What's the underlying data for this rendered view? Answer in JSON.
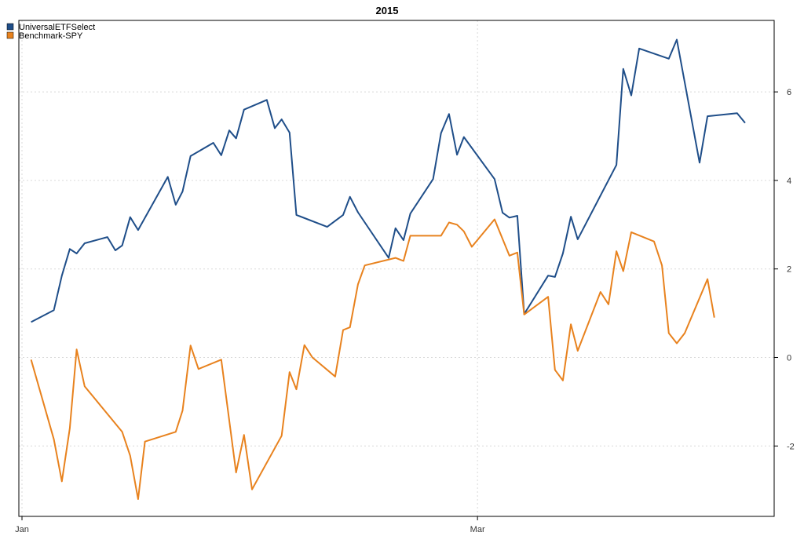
{
  "chart_data": {
    "type": "line",
    "title": "2015",
    "xlabel": "",
    "ylabel": "",
    "x_ticks": [
      {
        "label": "Jan",
        "value": 0
      },
      {
        "label": "Mar",
        "value": 40
      }
    ],
    "xlim": [
      0,
      63.5
    ],
    "ylim": [
      -3.6,
      7.6
    ],
    "y_ticks": [
      -2,
      0,
      2,
      4,
      6
    ],
    "y_axis_side": "right",
    "grid": true,
    "legend_position": "top-left",
    "series": [
      {
        "name": "UniversalETFSelect",
        "color": "#1f4e89",
        "points": [
          [
            0.8,
            0.8
          ],
          [
            2.8,
            1.07
          ],
          [
            3.5,
            1.85
          ],
          [
            4.2,
            2.45
          ],
          [
            4.8,
            2.35
          ],
          [
            5.5,
            2.58
          ],
          [
            7.5,
            2.72
          ],
          [
            8.2,
            2.42
          ],
          [
            8.8,
            2.53
          ],
          [
            9.5,
            3.17
          ],
          [
            10.2,
            2.88
          ],
          [
            12.8,
            4.08
          ],
          [
            13.5,
            3.45
          ],
          [
            14.1,
            3.75
          ],
          [
            14.8,
            4.55
          ],
          [
            16.8,
            4.85
          ],
          [
            17.5,
            4.57
          ],
          [
            18.2,
            5.13
          ],
          [
            18.8,
            4.95
          ],
          [
            19.5,
            5.6
          ],
          [
            21.5,
            5.82
          ],
          [
            22.2,
            5.18
          ],
          [
            22.8,
            5.38
          ],
          [
            23.5,
            5.08
          ],
          [
            24.1,
            3.22
          ],
          [
            26.8,
            2.95
          ],
          [
            28.2,
            3.22
          ],
          [
            28.8,
            3.63
          ],
          [
            29.5,
            3.28
          ],
          [
            32.2,
            2.25
          ],
          [
            32.8,
            2.92
          ],
          [
            33.5,
            2.65
          ],
          [
            34.1,
            3.25
          ],
          [
            36.1,
            4.03
          ],
          [
            36.8,
            5.07
          ],
          [
            37.5,
            5.5
          ],
          [
            38.2,
            4.58
          ],
          [
            38.8,
            4.98
          ],
          [
            41.5,
            4.03
          ],
          [
            42.2,
            3.27
          ],
          [
            42.8,
            3.16
          ],
          [
            43.5,
            3.2
          ],
          [
            44.1,
            0.98
          ],
          [
            46.2,
            1.85
          ],
          [
            46.8,
            1.82
          ],
          [
            47.5,
            2.35
          ],
          [
            48.2,
            3.18
          ],
          [
            48.8,
            2.67
          ],
          [
            52.2,
            4.35
          ],
          [
            52.8,
            6.52
          ],
          [
            53.5,
            5.92
          ],
          [
            54.2,
            6.98
          ],
          [
            56.8,
            6.75
          ],
          [
            57.5,
            7.18
          ],
          [
            59.5,
            4.4
          ],
          [
            60.2,
            5.45
          ],
          [
            62.8,
            5.52
          ],
          [
            63.5,
            5.3
          ]
        ]
      },
      {
        "name": "Benchmark-SPY",
        "color": "#e8821e",
        "points": [
          [
            0.8,
            -0.05
          ],
          [
            2.8,
            -1.85
          ],
          [
            3.5,
            -2.8
          ],
          [
            4.2,
            -1.6
          ],
          [
            4.8,
            0.18
          ],
          [
            5.5,
            -0.65
          ],
          [
            8.8,
            -1.68
          ],
          [
            9.5,
            -2.22
          ],
          [
            10.2,
            -3.2
          ],
          [
            10.8,
            -1.9
          ],
          [
            13.5,
            -1.68
          ],
          [
            14.1,
            -1.2
          ],
          [
            14.8,
            0.27
          ],
          [
            15.5,
            -0.26
          ],
          [
            17.5,
            -0.05
          ],
          [
            18.8,
            -2.6
          ],
          [
            19.5,
            -1.75
          ],
          [
            20.2,
            -2.98
          ],
          [
            22.8,
            -1.77
          ],
          [
            23.5,
            -0.33
          ],
          [
            24.1,
            -0.72
          ],
          [
            24.8,
            0.28
          ],
          [
            25.5,
            0.0
          ],
          [
            27.5,
            -0.43
          ],
          [
            28.2,
            0.62
          ],
          [
            28.8,
            0.68
          ],
          [
            29.5,
            1.65
          ],
          [
            30.1,
            2.08
          ],
          [
            32.8,
            2.25
          ],
          [
            33.5,
            2.18
          ],
          [
            34.1,
            2.75
          ],
          [
            36.8,
            2.75
          ],
          [
            37.5,
            3.05
          ],
          [
            38.2,
            3.0
          ],
          [
            38.8,
            2.85
          ],
          [
            39.5,
            2.5
          ],
          [
            41.5,
            3.12
          ],
          [
            42.8,
            2.3
          ],
          [
            43.5,
            2.37
          ],
          [
            44.1,
            0.97
          ],
          [
            46.2,
            1.37
          ],
          [
            46.8,
            -0.28
          ],
          [
            47.5,
            -0.52
          ],
          [
            48.2,
            0.75
          ],
          [
            48.8,
            0.15
          ],
          [
            50.8,
            1.48
          ],
          [
            51.5,
            1.2
          ],
          [
            52.2,
            2.4
          ],
          [
            52.8,
            1.95
          ],
          [
            53.5,
            2.83
          ],
          [
            55.5,
            2.62
          ],
          [
            56.2,
            2.08
          ],
          [
            56.8,
            0.55
          ],
          [
            57.5,
            0.32
          ],
          [
            58.2,
            0.55
          ],
          [
            60.2,
            1.77
          ],
          [
            60.8,
            0.9
          ]
        ]
      }
    ]
  }
}
